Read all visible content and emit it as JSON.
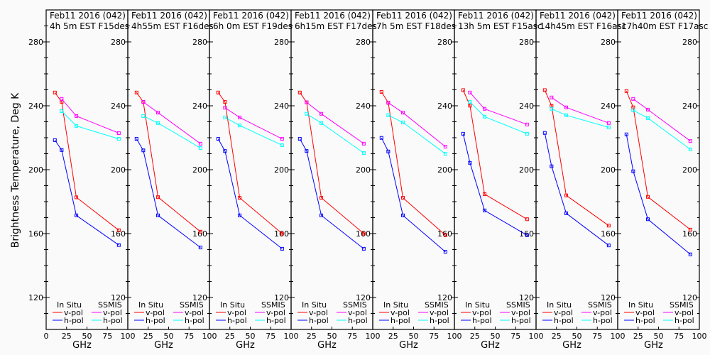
{
  "chart_data": [
    {
      "type": "line",
      "title": "Feb11 2016 (042)",
      "subtitle": "4h 5m  EST F15des",
      "series": [
        {
          "name": "In Situ v-pol",
          "color": "#ff0000",
          "x": [
            10.7,
            19,
            37,
            89
          ],
          "values": [
            248.3,
            242.5,
            182.7,
            162.1
          ]
        },
        {
          "name": "In Situ h-pol",
          "color": "#0000ff",
          "x": [
            10.7,
            19,
            37,
            89
          ],
          "values": [
            218.5,
            212.3,
            171.4,
            152.8
          ]
        },
        {
          "name": "SSMIS v-pol",
          "color": "#ff00ff",
          "x": [
            19,
            37,
            89
          ],
          "values": [
            244.3,
            233.6,
            222.9
          ]
        },
        {
          "name": "SSMIS h-pol",
          "color": "#00ffff",
          "x": [
            19,
            37,
            89
          ],
          "values": [
            236.7,
            227.4,
            219.3
          ]
        }
      ]
    },
    {
      "type": "line",
      "title": "Feb11 2016 (042)",
      "subtitle": "4h55m  EST F16des",
      "series": [
        {
          "name": "In Situ v-pol",
          "color": "#ff0000",
          "x": [
            10.7,
            19,
            37,
            89
          ],
          "values": [
            248.3,
            242.4,
            182.8,
            161.2
          ]
        },
        {
          "name": "In Situ h-pol",
          "color": "#0000ff",
          "x": [
            10.7,
            19,
            37,
            89
          ],
          "values": [
            219.3,
            212.1,
            171.4,
            151.3
          ]
        },
        {
          "name": "SSMIS v-pol",
          "color": "#ff00ff",
          "x": [
            19,
            37,
            89
          ],
          "values": [
            242.4,
            235.7,
            216.3
          ]
        },
        {
          "name": "SSMIS h-pol",
          "color": "#00ffff",
          "x": [
            19,
            37,
            89
          ],
          "values": [
            233.6,
            229.2,
            213.6
          ]
        }
      ]
    },
    {
      "type": "line",
      "title": "Feb11 2016 (042)",
      "subtitle": "6h 0m  EST F19des",
      "series": [
        {
          "name": "In Situ v-pol",
          "color": "#ff0000",
          "x": [
            10.7,
            19,
            37,
            89
          ],
          "values": [
            248.3,
            242.4,
            182.4,
            160.0
          ]
        },
        {
          "name": "In Situ h-pol",
          "color": "#0000ff",
          "x": [
            10.7,
            19,
            37,
            89
          ],
          "values": [
            219.3,
            211.7,
            171.4,
            150.5
          ]
        },
        {
          "name": "SSMIS v-pol",
          "color": "#ff00ff",
          "x": [
            19,
            37,
            89
          ],
          "values": [
            238.8,
            232.7,
            219.3
          ]
        },
        {
          "name": "SSMIS h-pol",
          "color": "#00ffff",
          "x": [
            19,
            37,
            89
          ],
          "values": [
            232.7,
            227.7,
            215.3
          ]
        }
      ]
    },
    {
      "type": "line",
      "title": "Feb11 2016 (042)",
      "subtitle": "6h15m  EST F17des",
      "series": [
        {
          "name": "In Situ v-pol",
          "color": "#ff0000",
          "x": [
            10.7,
            19,
            37,
            89
          ],
          "values": [
            248.3,
            242.2,
            182.4,
            160.0
          ]
        },
        {
          "name": "In Situ h-pol",
          "color": "#0000ff",
          "x": [
            10.7,
            19,
            37,
            89
          ],
          "values": [
            219.3,
            211.7,
            171.4,
            150.5
          ]
        },
        {
          "name": "SSMIS v-pol",
          "color": "#ff00ff",
          "x": [
            19,
            37,
            89
          ],
          "values": [
            242.2,
            235.0,
            216.3
          ]
        },
        {
          "name": "SSMIS h-pol",
          "color": "#00ffff",
          "x": [
            19,
            37,
            89
          ],
          "values": [
            235.0,
            229.2,
            210.4
          ]
        }
      ]
    },
    {
      "type": "line",
      "title": "Feb11 2016 (042)",
      "subtitle": "7h 5m  EST F18des",
      "series": [
        {
          "name": "In Situ v-pol",
          "color": "#ff0000",
          "x": [
            10.7,
            19,
            37,
            89
          ],
          "values": [
            248.7,
            241.9,
            182.4,
            159.0
          ]
        },
        {
          "name": "In Situ h-pol",
          "color": "#0000ff",
          "x": [
            10.7,
            19,
            37,
            89
          ],
          "values": [
            219.9,
            211.4,
            171.4,
            148.6
          ]
        },
        {
          "name": "SSMIS v-pol",
          "color": "#ff00ff",
          "x": [
            19,
            37,
            89
          ],
          "values": [
            241.9,
            235.7,
            214.4
          ]
        },
        {
          "name": "SSMIS h-pol",
          "color": "#00ffff",
          "x": [
            19,
            37,
            89
          ],
          "values": [
            234.1,
            229.6,
            209.9
          ]
        }
      ]
    },
    {
      "type": "line",
      "title": "Feb11 2016 (042)",
      "subtitle": "13h 5m  EST F15asc",
      "series": [
        {
          "name": "In Situ v-pol",
          "color": "#ff0000",
          "x": [
            10.7,
            19,
            37,
            89
          ],
          "values": [
            249.8,
            240.1,
            184.7,
            169.0
          ]
        },
        {
          "name": "In Situ h-pol",
          "color": "#0000ff",
          "x": [
            10.7,
            19,
            37,
            89
          ],
          "values": [
            222.5,
            204.3,
            174.5,
            159.0
          ]
        },
        {
          "name": "SSMIS v-pol",
          "color": "#ff00ff",
          "x": [
            19,
            37,
            89
          ],
          "values": [
            248.3,
            238.1,
            228.3
          ]
        },
        {
          "name": "SSMIS h-pol",
          "color": "#00ffff",
          "x": [
            19,
            37,
            89
          ],
          "values": [
            242.4,
            233.2,
            222.5
          ]
        }
      ]
    },
    {
      "type": "line",
      "title": "Feb11 2016 (042)",
      "subtitle": "14h45m  EST F16asc",
      "series": [
        {
          "name": "In Situ v-pol",
          "color": "#ff0000",
          "x": [
            10.7,
            19,
            37,
            89
          ],
          "values": [
            249.8,
            239.9,
            183.9,
            165.0
          ]
        },
        {
          "name": "In Situ h-pol",
          "color": "#0000ff",
          "x": [
            10.7,
            19,
            37,
            89
          ],
          "values": [
            223.0,
            202.1,
            172.7,
            152.6
          ]
        },
        {
          "name": "SSMIS v-pol",
          "color": "#ff00ff",
          "x": [
            19,
            37,
            89
          ],
          "values": [
            245.2,
            239.0,
            229.2
          ]
        },
        {
          "name": "SSMIS h-pol",
          "color": "#00ffff",
          "x": [
            19,
            37,
            89
          ],
          "values": [
            238.1,
            234.1,
            226.5
          ]
        }
      ]
    },
    {
      "type": "line",
      "title": "Feb11 2016 (042)",
      "subtitle": "17h40m  EST F17asc",
      "series": [
        {
          "name": "In Situ v-pol",
          "color": "#ff0000",
          "x": [
            10.7,
            19,
            37,
            89
          ],
          "values": [
            249.2,
            239.0,
            183.0,
            162.5
          ]
        },
        {
          "name": "In Situ h-pol",
          "color": "#0000ff",
          "x": [
            10.7,
            19,
            37,
            89
          ],
          "values": [
            222.1,
            199.0,
            169.0,
            147.0
          ]
        },
        {
          "name": "SSMIS v-pol",
          "color": "#ff00ff",
          "x": [
            19,
            37,
            89
          ],
          "values": [
            244.3,
            237.6,
            217.9
          ]
        },
        {
          "name": "SSMIS h-pol",
          "color": "#00ffff",
          "x": [
            19,
            37,
            89
          ],
          "values": [
            237.2,
            232.3,
            212.7
          ]
        }
      ]
    }
  ],
  "axes": {
    "xlabel": "GHz",
    "ylabel": "Brightness Temperature, Deg K",
    "xlim": [
      0,
      100
    ],
    "ylim": [
      100,
      300
    ],
    "xticks": [
      0,
      25,
      50,
      75,
      100
    ],
    "yticks": [
      120,
      160,
      200,
      240,
      280
    ],
    "grid": false
  },
  "legend": {
    "group1": "In Situ",
    "group2": "SSMIS",
    "v": "v-pol",
    "h": "h-pol",
    "placement": "bottom"
  }
}
